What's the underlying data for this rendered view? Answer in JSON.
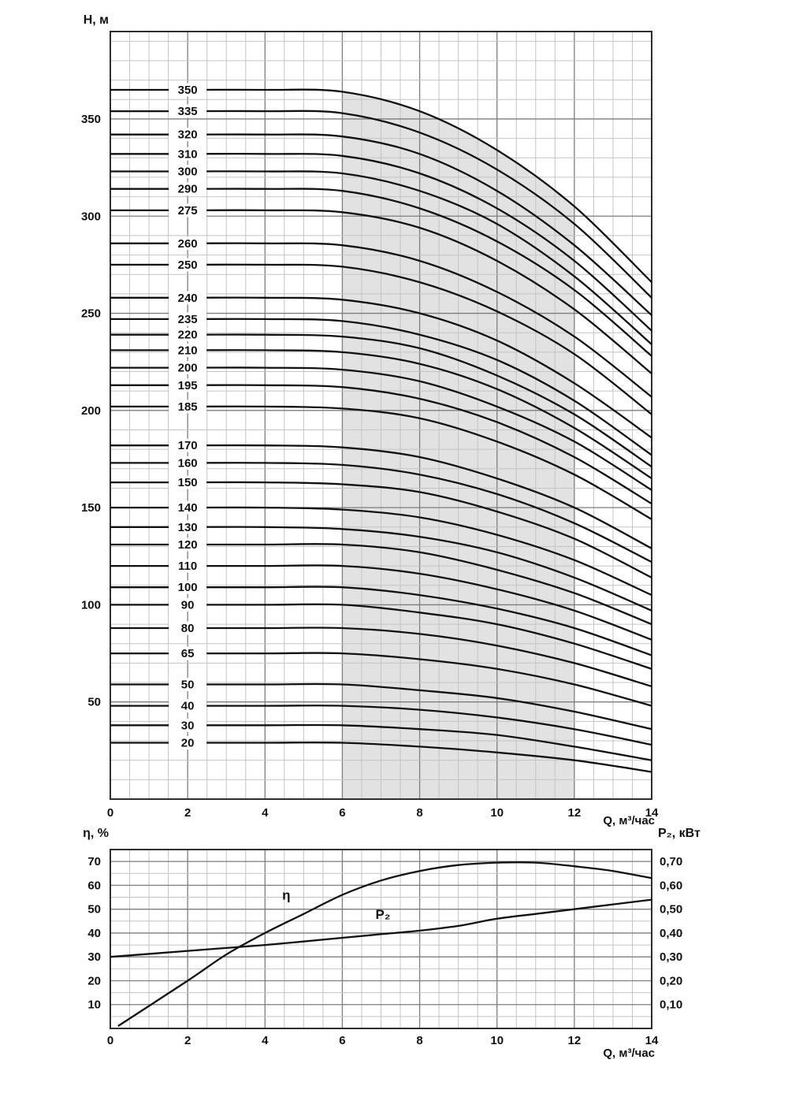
{
  "colors": {
    "curve": "#111111",
    "grid_minor": "#c4c4c4",
    "grid_major": "#7d7d7d",
    "frame": "#2e2e2e",
    "band": "#e2e2e2",
    "background": "#ffffff"
  },
  "chart_data": [
    {
      "type": "line",
      "id": "head-vs-flow",
      "title": "Н, м",
      "xlabel": "Q, м³/час",
      "xlim": [
        0,
        14
      ],
      "ylim": [
        0,
        395
      ],
      "x_ticks": [
        0,
        2,
        4,
        6,
        8,
        10,
        12,
        14
      ],
      "y_ticks": [
        50,
        100,
        150,
        200,
        250,
        300,
        350
      ],
      "x_minor_step": 0.5,
      "y_minor_step": 10,
      "grid": true,
      "band": {
        "x_from": 6,
        "x_to": 12
      },
      "label_x": 2,
      "q_points": [
        0,
        2,
        4,
        6,
        8,
        10,
        12,
        14
      ],
      "curves": [
        {
          "label": "350",
          "heads": [
            365,
            365,
            365,
            364,
            354,
            334,
            305,
            266
          ]
        },
        {
          "label": "335",
          "heads": [
            354,
            354,
            354,
            353,
            343,
            324,
            296,
            258
          ]
        },
        {
          "label": "320",
          "heads": [
            342,
            342,
            342,
            341,
            332,
            313,
            285,
            249
          ]
        },
        {
          "label": "310",
          "heads": [
            332,
            332,
            332,
            331,
            322,
            304,
            277,
            241
          ]
        },
        {
          "label": "300",
          "heads": [
            323,
            323,
            323,
            322,
            313,
            296,
            269,
            234
          ]
        },
        {
          "label": "290",
          "heads": [
            314,
            314,
            314,
            313,
            304,
            287,
            262,
            228
          ]
        },
        {
          "label": "275",
          "heads": [
            303,
            303,
            303,
            302,
            294,
            277,
            252,
            219
          ]
        },
        {
          "label": "260",
          "heads": [
            286,
            286,
            286,
            285,
            277,
            261,
            238,
            207
          ]
        },
        {
          "label": "250",
          "heads": [
            275,
            275,
            275,
            274,
            266,
            251,
            229,
            198
          ]
        },
        {
          "label": "240",
          "heads": [
            258,
            258,
            258,
            257,
            250,
            236,
            214,
            186
          ]
        },
        {
          "label": "235",
          "heads": [
            247,
            247,
            247,
            246,
            239,
            226,
            205,
            177
          ]
        },
        {
          "label": "220",
          "heads": [
            239,
            239,
            239,
            238,
            232,
            218,
            198,
            171
          ]
        },
        {
          "label": "210",
          "heads": [
            231,
            231,
            231,
            230,
            224,
            211,
            191,
            165
          ]
        },
        {
          "label": "200",
          "heads": [
            222,
            222,
            222,
            221,
            215,
            202,
            184,
            159
          ]
        },
        {
          "label": "195",
          "heads": [
            213,
            213,
            213,
            212,
            206,
            194,
            176,
            152
          ]
        },
        {
          "label": "185",
          "heads": [
            202,
            202,
            202,
            201,
            196,
            184,
            167,
            144
          ]
        },
        {
          "label": "170",
          "heads": [
            182,
            182,
            182,
            181,
            176,
            165,
            150,
            129
          ]
        },
        {
          "label": "160",
          "heads": [
            173,
            173,
            173,
            172,
            167,
            157,
            142,
            122
          ]
        },
        {
          "label": "150",
          "heads": [
            163,
            163,
            163,
            162,
            158,
            148,
            134,
            114
          ]
        },
        {
          "label": "140",
          "heads": [
            150,
            150,
            150,
            149,
            145,
            136,
            123,
            105
          ]
        },
        {
          "label": "130",
          "heads": [
            140,
            140,
            140,
            139,
            135,
            127,
            114,
            97
          ]
        },
        {
          "label": "120",
          "heads": [
            131,
            131,
            131,
            131,
            127,
            118,
            106,
            90
          ]
        },
        {
          "label": "110",
          "heads": [
            120,
            120,
            120,
            120,
            116,
            108,
            97,
            82
          ]
        },
        {
          "label": "100",
          "heads": [
            109,
            109,
            109,
            109,
            105,
            98,
            88,
            74
          ]
        },
        {
          "label": "90",
          "heads": [
            100,
            100,
            100,
            100,
            96,
            90,
            80,
            67
          ]
        },
        {
          "label": "80",
          "heads": [
            88,
            88,
            88,
            88,
            85,
            79,
            70,
            58
          ]
        },
        {
          "label": "65",
          "heads": [
            75,
            75,
            75,
            75,
            72,
            67,
            59,
            48
          ]
        },
        {
          "label": "50",
          "heads": [
            59,
            59,
            59,
            59,
            56,
            52,
            45,
            36
          ]
        },
        {
          "label": "40",
          "heads": [
            48,
            48,
            48,
            48,
            46,
            42,
            36,
            28
          ]
        },
        {
          "label": "30",
          "heads": [
            38,
            38,
            38,
            38,
            36,
            33,
            27,
            20
          ]
        },
        {
          "label": "20",
          "heads": [
            29,
            29,
            29,
            29,
            27,
            24,
            20,
            14
          ]
        }
      ]
    },
    {
      "type": "line",
      "id": "efficiency-and-power",
      "left_label": "η, %",
      "right_label": "P₂, кВт",
      "xlabel": "Q, м³/час",
      "xlim": [
        0,
        14
      ],
      "ylim": [
        0,
        75
      ],
      "x_ticks": [
        0,
        2,
        4,
        6,
        8,
        10,
        12,
        14
      ],
      "left_ticks": [
        10,
        20,
        30,
        40,
        50,
        60,
        70
      ],
      "right_ticks": [
        "0,10",
        "0,20",
        "0,30",
        "0,40",
        "0,50",
        "0,60",
        "0,70"
      ],
      "x_minor_step": 0.5,
      "y_minor_step": 5,
      "grid": true,
      "series": [
        {
          "name": "η",
          "label_pos": [
            4.55,
            54
          ],
          "points": [
            [
              0.2,
              1
            ],
            [
              2,
              20
            ],
            [
              3,
              31
            ],
            [
              4,
              40
            ],
            [
              5,
              48
            ],
            [
              6,
              56
            ],
            [
              7,
              62
            ],
            [
              8,
              66
            ],
            [
              9,
              68.5
            ],
            [
              10,
              69.5
            ],
            [
              11,
              69.5
            ],
            [
              12,
              68
            ],
            [
              13,
              66
            ],
            [
              14,
              63
            ]
          ]
        },
        {
          "name": "P₂",
          "label_pos": [
            7.05,
            46
          ],
          "points": [
            [
              0,
              30
            ],
            [
              2,
              32.5
            ],
            [
              4,
              35
            ],
            [
              6,
              38
            ],
            [
              7,
              39.5
            ],
            [
              8,
              41
            ],
            [
              9,
              43
            ],
            [
              10,
              46
            ],
            [
              11,
              48
            ],
            [
              12,
              50
            ],
            [
              13,
              52
            ],
            [
              14,
              54
            ]
          ]
        }
      ]
    }
  ]
}
